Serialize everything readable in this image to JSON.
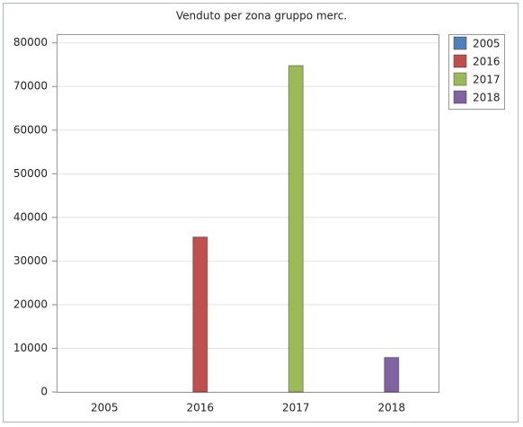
{
  "chart_data": {
    "type": "bar",
    "title": "Venduto per zona gruppo merc.",
    "categories": [
      "2005",
      "2016",
      "2017",
      "2018"
    ],
    "series": [
      {
        "name": "2005",
        "color": "#4f81bd",
        "values": [
          0,
          null,
          null,
          null
        ]
      },
      {
        "name": "2016",
        "color": "#c0504d",
        "values": [
          null,
          35500,
          null,
          null
        ]
      },
      {
        "name": "2017",
        "color": "#9bbb59",
        "values": [
          null,
          null,
          74800,
          null
        ]
      },
      {
        "name": "2018",
        "color": "#8064a2",
        "values": [
          null,
          null,
          null,
          7900
        ]
      }
    ],
    "ylim": [
      0,
      82000
    ],
    "yticks": [
      0,
      10000,
      20000,
      30000,
      40000,
      50000,
      60000,
      70000,
      80000
    ],
    "grid": true,
    "legend": "right"
  }
}
